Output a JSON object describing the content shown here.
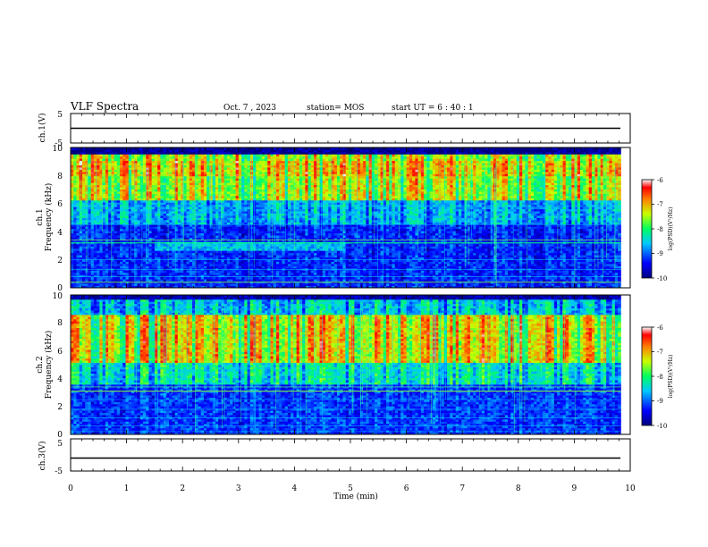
{
  "header": {
    "title": "VLF Spectra",
    "date": "Oct. 7 , 2023",
    "station": "station= MOS",
    "start": "start UT =  6 : 40 : 1"
  },
  "chart_data": [
    {
      "type": "line",
      "name": "ch1-waveform",
      "ylabel": "ch.1(V)",
      "ylim": [
        -5,
        5
      ],
      "yticks": [
        "5",
        "-5"
      ],
      "x": [
        0,
        9.83
      ],
      "y": [
        0,
        0
      ]
    },
    {
      "type": "heatmap",
      "name": "ch1-spectrogram",
      "ylabel": [
        "ch.1",
        "Frequency (kHz)"
      ],
      "ylim": [
        0,
        10
      ],
      "yticks": [
        "0",
        "2",
        "4",
        "6",
        "8",
        "10"
      ],
      "xlim": [
        0,
        10
      ],
      "data_end_min": 9.83,
      "colorbar": {
        "label": "log(PSD)(V²/Hz)",
        "range": [
          -10,
          -6
        ],
        "ticks": [
          "-6",
          "-7",
          "-8",
          "-9",
          "-10"
        ]
      }
    },
    {
      "type": "heatmap",
      "name": "ch2-spectrogram",
      "ylabel": [
        "ch.2",
        "Frequency (kHz)"
      ],
      "ylim": [
        0,
        10
      ],
      "yticks": [
        "0",
        "2",
        "4",
        "6",
        "8",
        "10"
      ],
      "xlim": [
        0,
        10
      ],
      "data_end_min": 9.83,
      "colorbar": {
        "label": "log(PSD)(V²/Hz)",
        "range": [
          -10,
          -6
        ],
        "ticks": [
          "-6",
          "-7",
          "-8",
          "-9",
          "-10"
        ]
      }
    },
    {
      "type": "line",
      "name": "ch3-waveform",
      "ylabel": "ch.3(V)",
      "ylim": [
        -5,
        5
      ],
      "yticks": [
        "5",
        "-5"
      ],
      "x": [
        0,
        9.83
      ],
      "y": [
        0,
        0
      ],
      "xlabel": "Time (min)",
      "xlim": [
        0,
        10
      ],
      "xticks": [
        "0",
        "1",
        "2",
        "3",
        "4",
        "5",
        "6",
        "7",
        "8",
        "9",
        "10"
      ]
    }
  ]
}
